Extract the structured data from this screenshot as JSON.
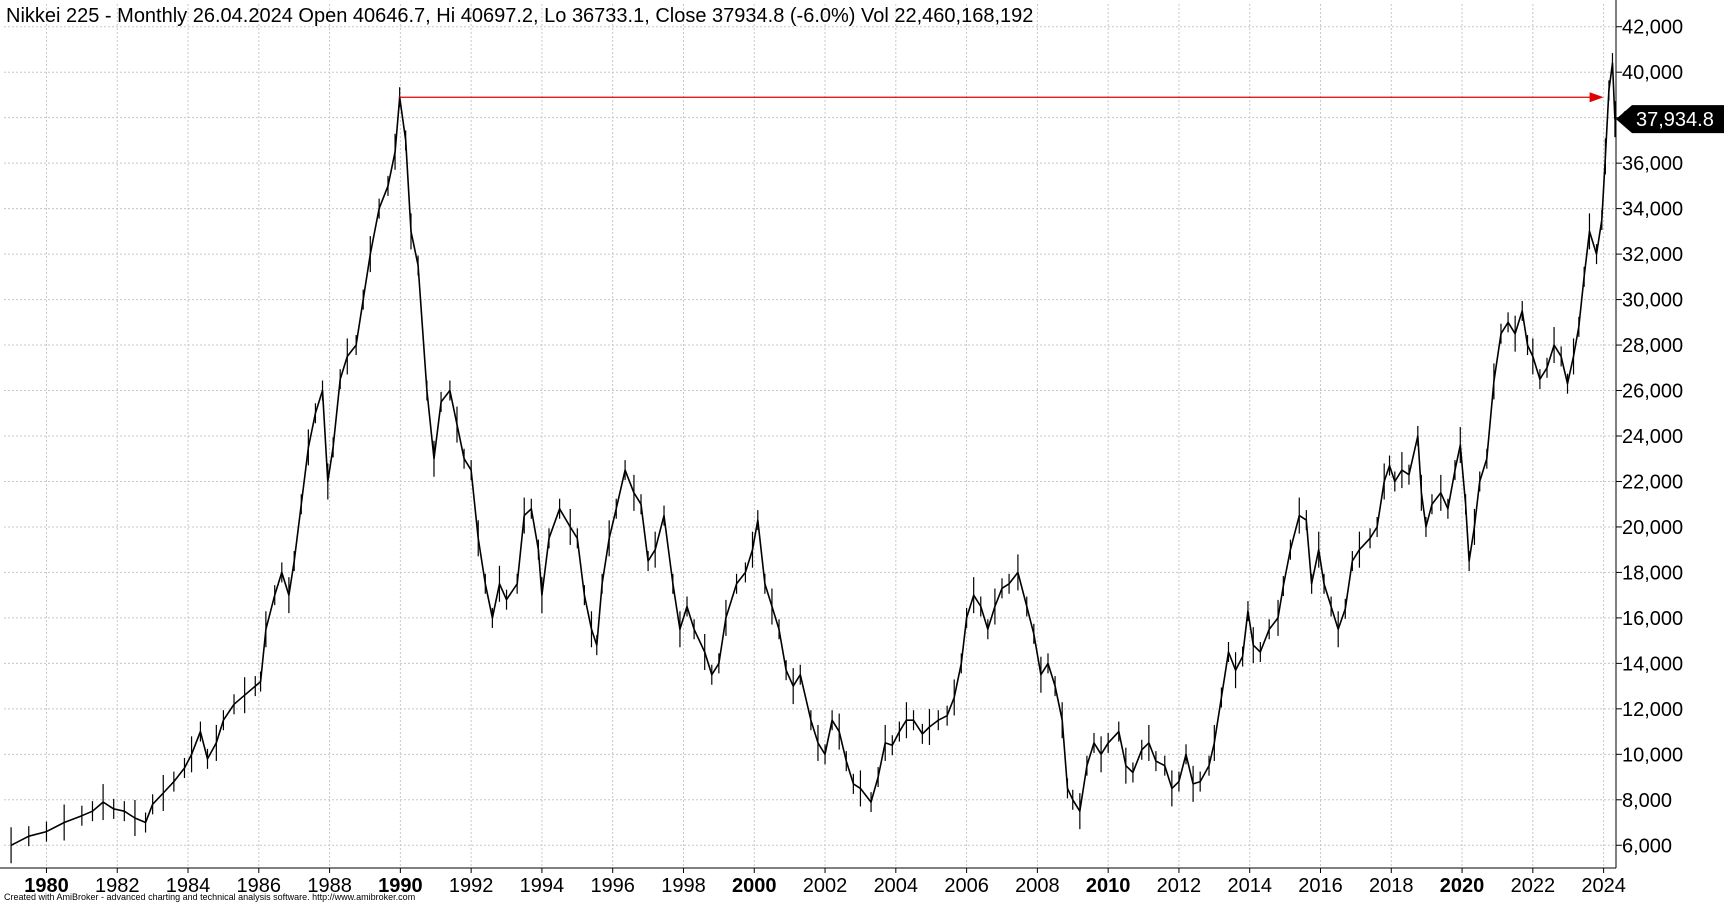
{
  "title": "Nikkei 225 - Monthly 26.04.2024 Open 40646.7, Hi 40697.2, Lo 36733.1, Close 37934.8 (-6.0%) Vol 22,460,168,192",
  "credit": "Created with AmiBroker - advanced charting and technical analysis software. http://www.amibroker.com",
  "colors": {
    "price": "#000000",
    "grid": "#c8c8c8",
    "arrow": "#e00000",
    "badge_bg": "#000000",
    "badge_text": "#ffffff"
  },
  "chart_data": {
    "type": "line",
    "title": "Nikkei 225 - Monthly 26.04.2024 Open 40646.7, Hi 40697.2, Lo 36733.1, Close 37934.8 (-6.0%) Vol 22,460,168,192",
    "xlabel": "",
    "ylabel": "",
    "x_range": [
      1978.8,
      2024.35
    ],
    "ylim": [
      5000,
      43000
    ],
    "grid": true,
    "x_ticks": [
      {
        "year": 1980,
        "label": "1980",
        "bold": true
      },
      {
        "year": 1982,
        "label": "1982",
        "bold": false
      },
      {
        "year": 1984,
        "label": "1984",
        "bold": false
      },
      {
        "year": 1986,
        "label": "1986",
        "bold": false
      },
      {
        "year": 1988,
        "label": "1988",
        "bold": false
      },
      {
        "year": 1990,
        "label": "1990",
        "bold": true
      },
      {
        "year": 1992,
        "label": "1992",
        "bold": false
      },
      {
        "year": 1994,
        "label": "1994",
        "bold": false
      },
      {
        "year": 1996,
        "label": "1996",
        "bold": false
      },
      {
        "year": 1998,
        "label": "1998",
        "bold": false
      },
      {
        "year": 2000,
        "label": "2000",
        "bold": true
      },
      {
        "year": 2002,
        "label": "2002",
        "bold": false
      },
      {
        "year": 2004,
        "label": "2004",
        "bold": false
      },
      {
        "year": 2006,
        "label": "2006",
        "bold": false
      },
      {
        "year": 2008,
        "label": "2008",
        "bold": false
      },
      {
        "year": 2010,
        "label": "2010",
        "bold": true
      },
      {
        "year": 2012,
        "label": "2012",
        "bold": false
      },
      {
        "year": 2014,
        "label": "2014",
        "bold": false
      },
      {
        "year": 2016,
        "label": "2016",
        "bold": false
      },
      {
        "year": 2018,
        "label": "2018",
        "bold": false
      },
      {
        "year": 2020,
        "label": "2020",
        "bold": true
      },
      {
        "year": 2022,
        "label": "2022",
        "bold": false
      },
      {
        "year": 2024,
        "label": "2024",
        "bold": false
      }
    ],
    "y_ticks": [
      {
        "value": 6000,
        "label": "6,000"
      },
      {
        "value": 8000,
        "label": "8,000"
      },
      {
        "value": 10000,
        "label": "10,000"
      },
      {
        "value": 12000,
        "label": "12,000"
      },
      {
        "value": 14000,
        "label": "14,000"
      },
      {
        "value": 16000,
        "label": "16,000"
      },
      {
        "value": 18000,
        "label": "18,000"
      },
      {
        "value": 20000,
        "label": "20,000"
      },
      {
        "value": 22000,
        "label": "22,000"
      },
      {
        "value": 24000,
        "label": "24,000"
      },
      {
        "value": 26000,
        "label": "26,000"
      },
      {
        "value": 28000,
        "label": "28,000"
      },
      {
        "value": 30000,
        "label": "30,000"
      },
      {
        "value": 32000,
        "label": "32,000"
      },
      {
        "value": 34000,
        "label": "34,000"
      },
      {
        "value": 36000,
        "label": "36,000"
      },
      {
        "value": 38000,
        "label": "38,000"
      },
      {
        "value": 40000,
        "label": "40,000"
      },
      {
        "value": 42000,
        "label": "42,000"
      }
    ],
    "last_value_label": "37,934.8",
    "last_value": 37934.8,
    "arrow": {
      "from_year": 1989.95,
      "to_year": 2024.0,
      "value": 38900
    },
    "series": [
      {
        "values": [
          [
            1979.0,
            6000
          ],
          [
            1979.5,
            6400
          ],
          [
            1980.0,
            6600
          ],
          [
            1980.5,
            7000
          ],
          [
            1981.0,
            7300
          ],
          [
            1981.3,
            7500
          ],
          [
            1981.6,
            7900
          ],
          [
            1981.9,
            7600
          ],
          [
            1982.2,
            7500
          ],
          [
            1982.5,
            7200
          ],
          [
            1982.8,
            7000
          ],
          [
            1983.0,
            7800
          ],
          [
            1983.3,
            8300
          ],
          [
            1983.6,
            8800
          ],
          [
            1983.9,
            9400
          ],
          [
            1984.1,
            10000
          ],
          [
            1984.35,
            11000
          ],
          [
            1984.55,
            9800
          ],
          [
            1984.8,
            10500
          ],
          [
            1985.0,
            11500
          ],
          [
            1985.3,
            12200
          ],
          [
            1985.6,
            12600
          ],
          [
            1985.9,
            13000
          ],
          [
            1986.05,
            13200
          ],
          [
            1986.2,
            15500
          ],
          [
            1986.45,
            17000
          ],
          [
            1986.65,
            18000
          ],
          [
            1986.85,
            17000
          ],
          [
            1987.0,
            18500
          ],
          [
            1987.2,
            21000
          ],
          [
            1987.4,
            23500
          ],
          [
            1987.6,
            25000
          ],
          [
            1987.8,
            26000
          ],
          [
            1987.95,
            22000
          ],
          [
            1988.1,
            23500
          ],
          [
            1988.3,
            26500
          ],
          [
            1988.5,
            27500
          ],
          [
            1988.75,
            28000
          ],
          [
            1988.95,
            30000
          ],
          [
            1989.15,
            32000
          ],
          [
            1989.4,
            34000
          ],
          [
            1989.65,
            35000
          ],
          [
            1989.85,
            36500
          ],
          [
            1989.98,
            38900
          ],
          [
            1990.15,
            37000
          ],
          [
            1990.3,
            33000
          ],
          [
            1990.5,
            31500
          ],
          [
            1990.75,
            26000
          ],
          [
            1990.95,
            23000
          ],
          [
            1991.15,
            25500
          ],
          [
            1991.4,
            26000
          ],
          [
            1991.6,
            24500
          ],
          [
            1991.8,
            23000
          ],
          [
            1992.0,
            22500
          ],
          [
            1992.2,
            19500
          ],
          [
            1992.4,
            17500
          ],
          [
            1992.6,
            16000
          ],
          [
            1992.8,
            17500
          ],
          [
            1993.0,
            16800
          ],
          [
            1993.3,
            17500
          ],
          [
            1993.5,
            20500
          ],
          [
            1993.7,
            20800
          ],
          [
            1993.9,
            19000
          ],
          [
            1994.0,
            17000
          ],
          [
            1994.2,
            19500
          ],
          [
            1994.5,
            20800
          ],
          [
            1994.8,
            20000
          ],
          [
            1995.0,
            19500
          ],
          [
            1995.2,
            17000
          ],
          [
            1995.4,
            15500
          ],
          [
            1995.55,
            14800
          ],
          [
            1995.7,
            17500
          ],
          [
            1995.9,
            19500
          ],
          [
            1996.1,
            20800
          ],
          [
            1996.35,
            22500
          ],
          [
            1996.6,
            21500
          ],
          [
            1996.8,
            21000
          ],
          [
            1997.0,
            18500
          ],
          [
            1997.2,
            19000
          ],
          [
            1997.45,
            20500
          ],
          [
            1997.7,
            17500
          ],
          [
            1997.9,
            15500
          ],
          [
            1998.1,
            16500
          ],
          [
            1998.3,
            15500
          ],
          [
            1998.6,
            14500
          ],
          [
            1998.8,
            13500
          ],
          [
            1999.0,
            14000
          ],
          [
            1999.2,
            16000
          ],
          [
            1999.5,
            17500
          ],
          [
            1999.75,
            18000
          ],
          [
            1999.95,
            19000
          ],
          [
            2000.1,
            20300
          ],
          [
            2000.3,
            17500
          ],
          [
            2000.5,
            16500
          ],
          [
            2000.7,
            15500
          ],
          [
            2000.9,
            13700
          ],
          [
            2001.1,
            13000
          ],
          [
            2001.3,
            13500
          ],
          [
            2001.6,
            11500
          ],
          [
            2001.8,
            10500
          ],
          [
            2002.0,
            10000
          ],
          [
            2002.2,
            11500
          ],
          [
            2002.4,
            11000
          ],
          [
            2002.6,
            9700
          ],
          [
            2002.8,
            8700
          ],
          [
            2003.0,
            8500
          ],
          [
            2003.3,
            7900
          ],
          [
            2003.5,
            9000
          ],
          [
            2003.7,
            10500
          ],
          [
            2003.9,
            10400
          ],
          [
            2004.1,
            11000
          ],
          [
            2004.3,
            11500
          ],
          [
            2004.5,
            11500
          ],
          [
            2004.75,
            10900
          ],
          [
            2004.95,
            11200
          ],
          [
            2005.2,
            11500
          ],
          [
            2005.45,
            11700
          ],
          [
            2005.65,
            12500
          ],
          [
            2005.85,
            14000
          ],
          [
            2006.0,
            16000
          ],
          [
            2006.2,
            17000
          ],
          [
            2006.4,
            16500
          ],
          [
            2006.6,
            15500
          ],
          [
            2006.8,
            16500
          ],
          [
            2007.0,
            17300
          ],
          [
            2007.2,
            17500
          ],
          [
            2007.45,
            18000
          ],
          [
            2007.7,
            16500
          ],
          [
            2007.9,
            15300
          ],
          [
            2008.1,
            13500
          ],
          [
            2008.3,
            14000
          ],
          [
            2008.5,
            13000
          ],
          [
            2008.7,
            11500
          ],
          [
            2008.85,
            8500
          ],
          [
            2009.0,
            8000
          ],
          [
            2009.2,
            7500
          ],
          [
            2009.4,
            9500
          ],
          [
            2009.6,
            10500
          ],
          [
            2009.8,
            10000
          ],
          [
            2010.0,
            10500
          ],
          [
            2010.3,
            11000
          ],
          [
            2010.5,
            9500
          ],
          [
            2010.7,
            9200
          ],
          [
            2010.95,
            10200
          ],
          [
            2011.15,
            10500
          ],
          [
            2011.35,
            9700
          ],
          [
            2011.6,
            9500
          ],
          [
            2011.8,
            8500
          ],
          [
            2012.0,
            8800
          ],
          [
            2012.2,
            10000
          ],
          [
            2012.4,
            8700
          ],
          [
            2012.6,
            8800
          ],
          [
            2012.85,
            9500
          ],
          [
            2013.0,
            10500
          ],
          [
            2013.2,
            12500
          ],
          [
            2013.4,
            14500
          ],
          [
            2013.6,
            13700
          ],
          [
            2013.8,
            14300
          ],
          [
            2013.95,
            16300
          ],
          [
            2014.1,
            14800
          ],
          [
            2014.3,
            14500
          ],
          [
            2014.55,
            15500
          ],
          [
            2014.8,
            16000
          ],
          [
            2014.95,
            17400
          ],
          [
            2015.15,
            19000
          ],
          [
            2015.4,
            20500
          ],
          [
            2015.6,
            20300
          ],
          [
            2015.75,
            17500
          ],
          [
            2015.95,
            19000
          ],
          [
            2016.1,
            17500
          ],
          [
            2016.3,
            16500
          ],
          [
            2016.5,
            15500
          ],
          [
            2016.7,
            16400
          ],
          [
            2016.9,
            18500
          ],
          [
            2017.1,
            19000
          ],
          [
            2017.4,
            19500
          ],
          [
            2017.6,
            20000
          ],
          [
            2017.8,
            22000
          ],
          [
            2017.95,
            22700
          ],
          [
            2018.1,
            22000
          ],
          [
            2018.3,
            22500
          ],
          [
            2018.5,
            22300
          ],
          [
            2018.75,
            24000
          ],
          [
            2018.85,
            21500
          ],
          [
            2018.98,
            20000
          ],
          [
            2019.15,
            21000
          ],
          [
            2019.4,
            21500
          ],
          [
            2019.6,
            20800
          ],
          [
            2019.8,
            22500
          ],
          [
            2019.95,
            23600
          ],
          [
            2020.1,
            21000
          ],
          [
            2020.2,
            18500
          ],
          [
            2020.35,
            20000
          ],
          [
            2020.5,
            22000
          ],
          [
            2020.7,
            23000
          ],
          [
            2020.9,
            26400
          ],
          [
            2021.1,
            28500
          ],
          [
            2021.3,
            29000
          ],
          [
            2021.5,
            28500
          ],
          [
            2021.7,
            29500
          ],
          [
            2021.85,
            28000
          ],
          [
            2022.0,
            27500
          ],
          [
            2022.2,
            26500
          ],
          [
            2022.4,
            27000
          ],
          [
            2022.6,
            28000
          ],
          [
            2022.8,
            27500
          ],
          [
            2022.98,
            26300
          ],
          [
            2023.15,
            27500
          ],
          [
            2023.3,
            28800
          ],
          [
            2023.45,
            31000
          ],
          [
            2023.6,
            33000
          ],
          [
            2023.8,
            32000
          ],
          [
            2023.95,
            33500
          ],
          [
            2024.05,
            36300
          ],
          [
            2024.15,
            39200
          ],
          [
            2024.25,
            40400
          ],
          [
            2024.32,
            37934.8
          ]
        ]
      }
    ]
  }
}
